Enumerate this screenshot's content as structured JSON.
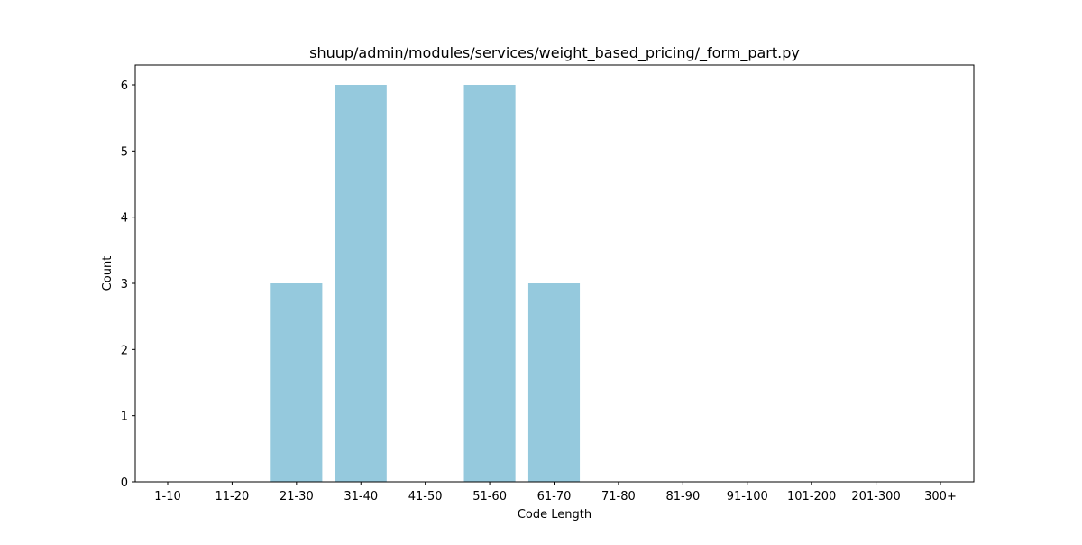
{
  "chart_data": {
    "type": "bar",
    "title": "shuup/admin/modules/services/weight_based_pricing/_form_part.py",
    "xlabel": "Code Length",
    "ylabel": "Count",
    "categories": [
      "1-10",
      "11-20",
      "21-30",
      "31-40",
      "41-50",
      "51-60",
      "61-70",
      "71-80",
      "81-90",
      "91-100",
      "101-200",
      "201-300",
      "300+"
    ],
    "values": [
      0,
      0,
      3,
      6,
      0,
      6,
      3,
      0,
      0,
      0,
      0,
      0,
      0
    ],
    "ylim": [
      0,
      6.3
    ],
    "yticks": [
      0,
      1,
      2,
      3,
      4,
      5,
      6
    ],
    "bar_color": "#95c9dd",
    "grid": false,
    "legend": "none"
  }
}
